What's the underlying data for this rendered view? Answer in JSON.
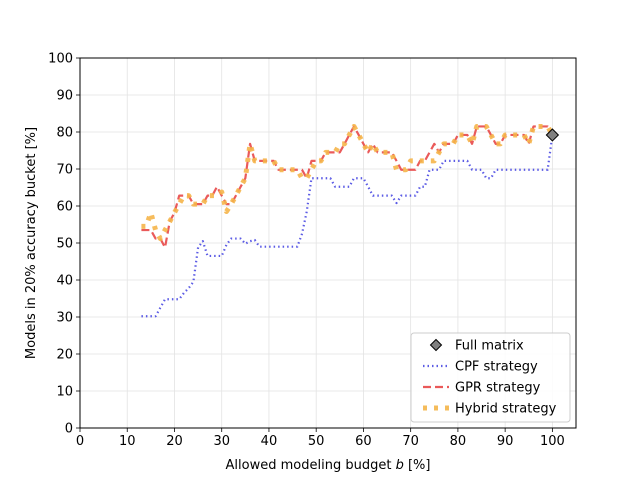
{
  "chart_data": {
    "type": "line",
    "title": "",
    "xlabel": "Allowed modeling budget b [%]",
    "xlabel_parts": {
      "before": "Allowed modeling budget ",
      "variable": "b",
      "after": " [%]"
    },
    "ylabel": "Models in 20% accuracy bucket [%]",
    "xlim": [
      0,
      105
    ],
    "ylim": [
      0,
      100
    ],
    "xticks": [
      "0",
      "10",
      "20",
      "30",
      "40",
      "50",
      "60",
      "70",
      "80",
      "90",
      "100"
    ],
    "yticks": [
      "0",
      "10",
      "20",
      "30",
      "40",
      "50",
      "60",
      "70",
      "80",
      "90",
      "100"
    ],
    "grid": true,
    "legend_position": "lower-right",
    "series": [
      {
        "name": "CPF strategy",
        "color": "#4040e0",
        "style": "dotted",
        "x": [
          13,
          14,
          15,
          16,
          17,
          18,
          19,
          20,
          21,
          22,
          23,
          24,
          25,
          26,
          27,
          28,
          29,
          30,
          31,
          32,
          33,
          34,
          35,
          36,
          37,
          38,
          39,
          40,
          41,
          42,
          43,
          44,
          45,
          46,
          47,
          48,
          49,
          50,
          51,
          52,
          53,
          54,
          55,
          56,
          57,
          58,
          59,
          60,
          61,
          62,
          63,
          64,
          65,
          66,
          67,
          68,
          69,
          70,
          71,
          72,
          73,
          74,
          75,
          76,
          77,
          78,
          79,
          80,
          81,
          82,
          83,
          84,
          85,
          86,
          87,
          88,
          89,
          90,
          91,
          92,
          93,
          94,
          95,
          96,
          97,
          98,
          99,
          100
        ],
        "values": [
          30.2,
          30.2,
          30.2,
          30.2,
          32.5,
          34.8,
          34.8,
          34.8,
          34.8,
          36.5,
          37.8,
          39.5,
          48.8,
          50.5,
          46.5,
          46.5,
          46.5,
          46.5,
          49.5,
          51.2,
          51.2,
          51.2,
          49.8,
          50.5,
          50.8,
          49.0,
          49.0,
          49.0,
          49.0,
          49.0,
          49.0,
          49.0,
          49.0,
          49.0,
          52.5,
          58.5,
          67.5,
          67.5,
          67.5,
          67.5,
          67.5,
          65.2,
          65.2,
          65.2,
          65.2,
          67.5,
          67.5,
          67.5,
          65.2,
          62.8,
          62.8,
          62.8,
          62.8,
          62.8,
          60.8,
          62.8,
          62.8,
          62.8,
          62.8,
          65.2,
          65.2,
          69.8,
          69.8,
          69.8,
          72.2,
          72.2,
          72.2,
          72.2,
          72.2,
          72.2,
          69.8,
          69.8,
          69.8,
          67.5,
          67.5,
          69.8,
          69.8,
          69.8,
          69.8,
          69.8,
          69.8,
          69.8,
          69.8,
          69.8,
          69.8,
          69.8,
          69.8,
          79.2
        ]
      },
      {
        "name": "GPR strategy",
        "color": "#e84848",
        "style": "dashed",
        "x": [
          13,
          14,
          15,
          16,
          17,
          18,
          19,
          20,
          21,
          22,
          23,
          24,
          25,
          26,
          27,
          28,
          29,
          30,
          31,
          32,
          33,
          34,
          35,
          36,
          37,
          38,
          39,
          40,
          41,
          42,
          43,
          44,
          45,
          46,
          47,
          48,
          49,
          50,
          51,
          52,
          53,
          54,
          55,
          56,
          57,
          58,
          59,
          60,
          61,
          62,
          63,
          64,
          65,
          66,
          67,
          68,
          69,
          70,
          71,
          72,
          73,
          74,
          75,
          76,
          77,
          78,
          79,
          80,
          81,
          82,
          83,
          84,
          85,
          86,
          87,
          88,
          89,
          90,
          91,
          92,
          93,
          94,
          95,
          96,
          97,
          98,
          99,
          100
        ],
        "values": [
          53.5,
          53.5,
          53.5,
          51.2,
          51.2,
          48.8,
          55.8,
          58.2,
          62.8,
          62.8,
          62.8,
          60.5,
          60.5,
          60.5,
          62.8,
          62.8,
          65.2,
          62.8,
          60.5,
          60.5,
          62.8,
          65.2,
          67.5,
          76.8,
          72.2,
          72.2,
          72.2,
          72.2,
          72.2,
          69.8,
          69.8,
          69.8,
          69.8,
          69.8,
          69.8,
          67.5,
          72.2,
          72.2,
          72.2,
          74.5,
          74.5,
          74.5,
          74.5,
          76.8,
          79.2,
          81.5,
          79.2,
          76.8,
          74.5,
          76.8,
          74.5,
          74.5,
          74.5,
          74.5,
          72.2,
          69.8,
          69.8,
          69.8,
          69.8,
          72.2,
          72.2,
          74.5,
          76.8,
          74.5,
          76.8,
          76.8,
          76.8,
          79.2,
          79.2,
          79.2,
          76.8,
          81.5,
          81.5,
          81.5,
          79.2,
          76.8,
          76.8,
          79.2,
          79.2,
          79.2,
          79.2,
          79.2,
          76.8,
          81.5,
          81.5,
          81.5,
          81.5,
          79.2
        ]
      },
      {
        "name": "Hybrid strategy",
        "color": "#f5b54a",
        "style": "dotted-thick",
        "x": [
          13,
          14,
          15,
          16,
          17,
          18,
          19,
          20,
          21,
          22,
          23,
          24,
          25,
          26,
          27,
          28,
          29,
          30,
          31,
          32,
          33,
          34,
          35,
          36,
          37,
          38,
          39,
          40,
          41,
          42,
          43,
          44,
          45,
          46,
          47,
          48,
          49,
          50,
          51,
          52,
          53,
          54,
          55,
          56,
          57,
          58,
          59,
          60,
          61,
          62,
          63,
          64,
          65,
          66,
          67,
          68,
          69,
          70,
          71,
          72,
          73,
          74,
          75,
          76,
          77,
          78,
          79,
          80,
          81,
          82,
          83,
          84,
          85,
          86,
          87,
          88,
          89,
          90,
          91,
          92,
          93,
          94,
          95,
          96,
          97,
          98,
          99,
          100
        ],
        "values": [
          54.5,
          54.5,
          58.2,
          53.5,
          51.2,
          53.5,
          55.8,
          58.2,
          60.5,
          62.8,
          62.8,
          60.5,
          60.5,
          60.5,
          62.8,
          62.8,
          62.8,
          63.8,
          58.5,
          60.5,
          62.8,
          65.2,
          67.5,
          76.8,
          72.2,
          72.2,
          72.2,
          72.2,
          72.2,
          69.8,
          69.8,
          69.8,
          69.8,
          69.8,
          67.5,
          67.5,
          69.8,
          72.2,
          72.2,
          74.5,
          74.5,
          74.5,
          76.8,
          76.8,
          79.2,
          81.5,
          79.2,
          76.8,
          74.5,
          76.8,
          74.5,
          74.5,
          74.5,
          74.5,
          69.8,
          69.8,
          69.8,
          72.2,
          72.2,
          72.2,
          72.2,
          72.2,
          72.2,
          74.5,
          76.8,
          76.8,
          76.8,
          79.2,
          79.2,
          79.2,
          76.8,
          81.5,
          81.5,
          81.5,
          79.2,
          76.8,
          76.8,
          79.2,
          79.2,
          79.2,
          79.2,
          79.2,
          76.8,
          81.5,
          81.5,
          81.5,
          81.5,
          79.2
        ]
      }
    ],
    "markers": [
      {
        "name": "Full matrix",
        "x": 100,
        "y": 79.2,
        "shape": "diamond",
        "color": "#808080"
      }
    ]
  }
}
